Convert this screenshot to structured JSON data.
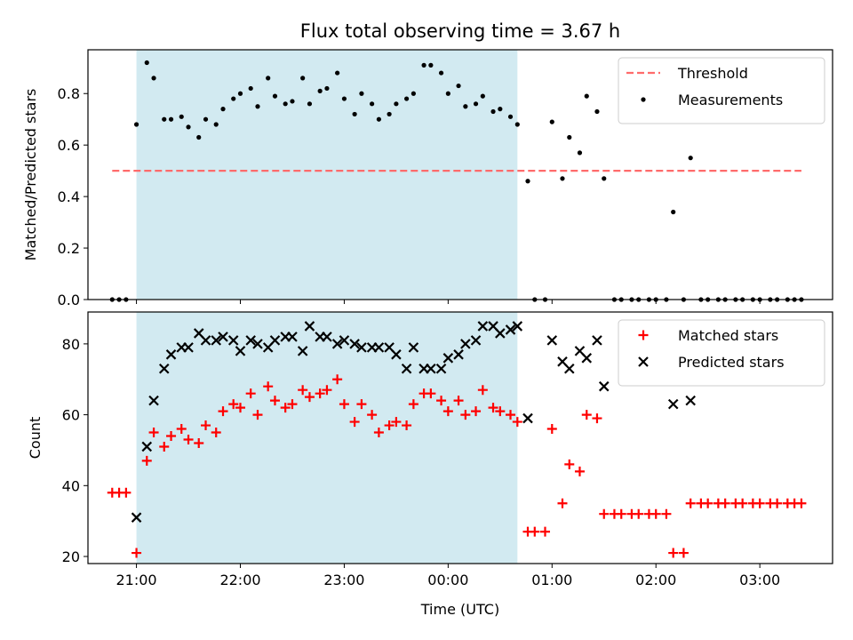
{
  "title": "Flux total observing time = 3.67 h",
  "x_ticks": [
    {
      "t": 0,
      "label": "21:00"
    },
    {
      "t": 60,
      "label": "22:00"
    },
    {
      "t": 120,
      "label": "23:00"
    },
    {
      "t": 180,
      "label": "00:00"
    },
    {
      "t": 240,
      "label": "01:00"
    },
    {
      "t": 300,
      "label": "02:00"
    },
    {
      "t": 360,
      "label": "03:00"
    }
  ],
  "x_axis_label": "Time (UTC)",
  "colors": {
    "shade": "#add8e6",
    "threshold": "#ff6b6b",
    "measurements": "#000000",
    "matched": "#ff0000",
    "predicted": "#000000"
  },
  "chart_data": [
    {
      "type": "scatter",
      "ylabel": "Matched/Predicted stars",
      "xlim": [
        "20:32",
        "03:42"
      ],
      "ylim": [
        0,
        0.97
      ],
      "yticks": [
        "0.0",
        "0.2",
        "0.4",
        "0.6",
        "0.8"
      ],
      "legend_position": "top-right",
      "observing_window": [
        "21:00",
        "00:40"
      ],
      "threshold": {
        "name": "Threshold",
        "y": 0.5,
        "x_range": [
          "20:46",
          "03:24"
        ]
      },
      "series": [
        {
          "name": "Measurements",
          "points": [
            [
              "20:46",
              0.0
            ],
            [
              "20:50",
              0.0
            ],
            [
              "20:54",
              0.0
            ],
            [
              "21:00",
              0.68
            ],
            [
              "21:06",
              0.92
            ],
            [
              "21:10",
              0.86
            ],
            [
              "21:16",
              0.7
            ],
            [
              "21:20",
              0.7
            ],
            [
              "21:26",
              0.71
            ],
            [
              "21:30",
              0.67
            ],
            [
              "21:36",
              0.63
            ],
            [
              "21:40",
              0.7
            ],
            [
              "21:46",
              0.68
            ],
            [
              "21:50",
              0.74
            ],
            [
              "21:56",
              0.78
            ],
            [
              "22:00",
              0.8
            ],
            [
              "22:06",
              0.82
            ],
            [
              "22:10",
              0.75
            ],
            [
              "22:16",
              0.86
            ],
            [
              "22:20",
              0.79
            ],
            [
              "22:26",
              0.76
            ],
            [
              "22:30",
              0.77
            ],
            [
              "22:36",
              0.86
            ],
            [
              "22:40",
              0.76
            ],
            [
              "22:46",
              0.81
            ],
            [
              "22:50",
              0.82
            ],
            [
              "22:56",
              0.88
            ],
            [
              "23:00",
              0.78
            ],
            [
              "23:06",
              0.72
            ],
            [
              "23:10",
              0.8
            ],
            [
              "23:16",
              0.76
            ],
            [
              "23:20",
              0.7
            ],
            [
              "23:26",
              0.72
            ],
            [
              "23:30",
              0.76
            ],
            [
              "23:36",
              0.78
            ],
            [
              "23:40",
              0.8
            ],
            [
              "23:46",
              0.91
            ],
            [
              "23:50",
              0.91
            ],
            [
              "23:56",
              0.88
            ],
            [
              "00:00",
              0.8
            ],
            [
              "00:06",
              0.83
            ],
            [
              "00:10",
              0.75
            ],
            [
              "00:16",
              0.76
            ],
            [
              "00:20",
              0.79
            ],
            [
              "00:26",
              0.73
            ],
            [
              "00:30",
              0.74
            ],
            [
              "00:36",
              0.71
            ],
            [
              "00:40",
              0.68
            ],
            [
              "00:46",
              0.46
            ],
            [
              "00:50",
              0.0
            ],
            [
              "00:56",
              0.0
            ],
            [
              "01:00",
              0.69
            ],
            [
              "01:06",
              0.47
            ],
            [
              "01:10",
              0.63
            ],
            [
              "01:16",
              0.57
            ],
            [
              "01:20",
              0.79
            ],
            [
              "01:26",
              0.73
            ],
            [
              "01:30",
              0.47
            ],
            [
              "01:36",
              0.0
            ],
            [
              "01:40",
              0.0
            ],
            [
              "01:46",
              0.0
            ],
            [
              "01:50",
              0.0
            ],
            [
              "01:56",
              0.0
            ],
            [
              "02:00",
              0.0
            ],
            [
              "02:06",
              0.0
            ],
            [
              "02:10",
              0.34
            ],
            [
              "02:16",
              0.0
            ],
            [
              "02:20",
              0.55
            ],
            [
              "02:26",
              0.0
            ],
            [
              "02:30",
              0.0
            ],
            [
              "02:36",
              0.0
            ],
            [
              "02:40",
              0.0
            ],
            [
              "02:46",
              0.0
            ],
            [
              "02:50",
              0.0
            ],
            [
              "02:56",
              0.0
            ],
            [
              "03:00",
              0.0
            ],
            [
              "03:06",
              0.0
            ],
            [
              "03:10",
              0.0
            ],
            [
              "03:16",
              0.0
            ],
            [
              "03:20",
              0.0
            ],
            [
              "03:24",
              0.0
            ]
          ]
        }
      ]
    },
    {
      "type": "scatter",
      "ylabel": "Count",
      "xlim": [
        "20:32",
        "03:42"
      ],
      "ylim": [
        18,
        89
      ],
      "yticks": [
        "20",
        "40",
        "60",
        "80"
      ],
      "legend_position": "top-right",
      "observing_window": [
        "21:00",
        "00:40"
      ],
      "series": [
        {
          "name": "Matched stars",
          "marker": "+",
          "points": [
            [
              "20:46",
              38
            ],
            [
              "20:50",
              38
            ],
            [
              "20:54",
              38
            ],
            [
              "21:00",
              21
            ],
            [
              "21:06",
              47
            ],
            [
              "21:10",
              55
            ],
            [
              "21:16",
              51
            ],
            [
              "21:20",
              54
            ],
            [
              "21:26",
              56
            ],
            [
              "21:30",
              53
            ],
            [
              "21:36",
              52
            ],
            [
              "21:40",
              57
            ],
            [
              "21:46",
              55
            ],
            [
              "21:50",
              61
            ],
            [
              "21:56",
              63
            ],
            [
              "22:00",
              62
            ],
            [
              "22:06",
              66
            ],
            [
              "22:10",
              60
            ],
            [
              "22:16",
              68
            ],
            [
              "22:20",
              64
            ],
            [
              "22:26",
              62
            ],
            [
              "22:30",
              63
            ],
            [
              "22:36",
              67
            ],
            [
              "22:40",
              65
            ],
            [
              "22:46",
              66
            ],
            [
              "22:50",
              67
            ],
            [
              "22:56",
              70
            ],
            [
              "23:00",
              63
            ],
            [
              "23:06",
              58
            ],
            [
              "23:10",
              63
            ],
            [
              "23:16",
              60
            ],
            [
              "23:20",
              55
            ],
            [
              "23:26",
              57
            ],
            [
              "23:30",
              58
            ],
            [
              "23:36",
              57
            ],
            [
              "23:40",
              63
            ],
            [
              "23:46",
              66
            ],
            [
              "23:50",
              66
            ],
            [
              "23:56",
              64
            ],
            [
              "00:00",
              61
            ],
            [
              "00:06",
              64
            ],
            [
              "00:10",
              60
            ],
            [
              "00:16",
              61
            ],
            [
              "00:20",
              67
            ],
            [
              "00:26",
              62
            ],
            [
              "00:30",
              61
            ],
            [
              "00:36",
              60
            ],
            [
              "00:40",
              58
            ],
            [
              "00:46",
              27
            ],
            [
              "00:50",
              27
            ],
            [
              "00:56",
              27
            ],
            [
              "01:00",
              56
            ],
            [
              "01:06",
              35
            ],
            [
              "01:10",
              46
            ],
            [
              "01:16",
              44
            ],
            [
              "01:20",
              60
            ],
            [
              "01:26",
              59
            ],
            [
              "01:30",
              32
            ],
            [
              "01:36",
              32
            ],
            [
              "01:40",
              32
            ],
            [
              "01:46",
              32
            ],
            [
              "01:50",
              32
            ],
            [
              "01:56",
              32
            ],
            [
              "02:00",
              32
            ],
            [
              "02:06",
              32
            ],
            [
              "02:10",
              21
            ],
            [
              "02:16",
              21
            ],
            [
              "02:20",
              35
            ],
            [
              "02:26",
              35
            ],
            [
              "02:30",
              35
            ],
            [
              "02:36",
              35
            ],
            [
              "02:40",
              35
            ],
            [
              "02:46",
              35
            ],
            [
              "02:50",
              35
            ],
            [
              "02:56",
              35
            ],
            [
              "03:00",
              35
            ],
            [
              "03:06",
              35
            ],
            [
              "03:10",
              35
            ],
            [
              "03:16",
              35
            ],
            [
              "03:20",
              35
            ],
            [
              "03:24",
              35
            ]
          ]
        },
        {
          "name": "Predicted stars",
          "marker": "x",
          "points": [
            [
              "21:00",
              31
            ],
            [
              "21:06",
              51
            ],
            [
              "21:10",
              64
            ],
            [
              "21:16",
              73
            ],
            [
              "21:20",
              77
            ],
            [
              "21:26",
              79
            ],
            [
              "21:30",
              79
            ],
            [
              "21:36",
              83
            ],
            [
              "21:40",
              81
            ],
            [
              "21:46",
              81
            ],
            [
              "21:50",
              82
            ],
            [
              "21:56",
              81
            ],
            [
              "22:00",
              78
            ],
            [
              "22:06",
              81
            ],
            [
              "22:10",
              80
            ],
            [
              "22:16",
              79
            ],
            [
              "22:20",
              81
            ],
            [
              "22:26",
              82
            ],
            [
              "22:30",
              82
            ],
            [
              "22:36",
              78
            ],
            [
              "22:40",
              85
            ],
            [
              "22:46",
              82
            ],
            [
              "22:50",
              82
            ],
            [
              "22:56",
              80
            ],
            [
              "23:00",
              81
            ],
            [
              "23:06",
              80
            ],
            [
              "23:10",
              79
            ],
            [
              "23:16",
              79
            ],
            [
              "23:20",
              79
            ],
            [
              "23:26",
              79
            ],
            [
              "23:30",
              77
            ],
            [
              "23:36",
              73
            ],
            [
              "23:40",
              79
            ],
            [
              "23:46",
              73
            ],
            [
              "23:50",
              73
            ],
            [
              "23:56",
              73
            ],
            [
              "00:00",
              76
            ],
            [
              "00:06",
              77
            ],
            [
              "00:10",
              80
            ],
            [
              "00:16",
              81
            ],
            [
              "00:20",
              85
            ],
            [
              "00:26",
              85
            ],
            [
              "00:30",
              83
            ],
            [
              "00:36",
              84
            ],
            [
              "00:40",
              85
            ],
            [
              "00:46",
              59
            ],
            [
              "01:00",
              81
            ],
            [
              "01:06",
              75
            ],
            [
              "01:10",
              73
            ],
            [
              "01:16",
              78
            ],
            [
              "01:20",
              76
            ],
            [
              "01:26",
              81
            ],
            [
              "01:30",
              68
            ],
            [
              "02:10",
              63
            ],
            [
              "02:20",
              64
            ]
          ]
        }
      ]
    }
  ]
}
